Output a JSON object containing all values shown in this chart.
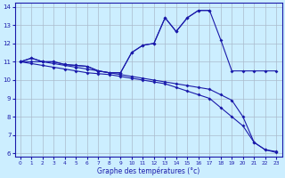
{
  "xlabel": "Graphe des températures (°c)",
  "line_color": "#1a1aaa",
  "bg_color": "#cceeff",
  "grid_color": "#aabbcc",
  "ylim": [
    6,
    14
  ],
  "yticks": [
    6,
    7,
    8,
    9,
    10,
    11,
    12,
    13,
    14
  ],
  "xticks": [
    0,
    1,
    2,
    3,
    4,
    5,
    6,
    7,
    8,
    9,
    10,
    11,
    12,
    13,
    14,
    15,
    16,
    17,
    18,
    19,
    20,
    21,
    22,
    23
  ],
  "curve1_x": [
    0,
    1,
    2,
    3,
    4,
    5,
    6,
    7,
    8,
    9,
    10,
    11,
    12,
    13,
    14,
    15,
    16,
    17
  ],
  "curve1_y": [
    11.0,
    11.2,
    11.0,
    11.0,
    10.85,
    10.8,
    10.75,
    10.5,
    10.4,
    10.4,
    11.5,
    11.9,
    12.0,
    13.4,
    12.65,
    13.4,
    13.8,
    13.8
  ],
  "curve2_x": [
    0,
    1,
    2,
    3,
    4,
    5,
    6,
    7,
    8,
    9,
    10,
    11,
    12,
    13,
    14,
    15,
    16,
    17,
    18,
    19,
    20,
    21,
    22,
    23
  ],
  "curve2_y": [
    11.0,
    11.2,
    11.0,
    11.0,
    10.85,
    10.8,
    10.75,
    10.5,
    10.4,
    10.4,
    11.5,
    11.9,
    12.0,
    13.4,
    12.65,
    13.4,
    13.8,
    13.8,
    12.2,
    10.5,
    10.5,
    10.5,
    10.5,
    10.5
  ],
  "curve3_x": [
    0,
    1,
    2,
    3,
    4,
    5,
    6,
    7,
    8,
    9,
    10,
    11,
    12,
    13,
    14,
    15,
    16,
    17,
    18,
    19,
    20,
    21,
    22,
    23
  ],
  "curve3_y": [
    11.0,
    11.0,
    11.0,
    10.9,
    10.8,
    10.7,
    10.6,
    10.5,
    10.4,
    10.3,
    10.2,
    10.1,
    10.0,
    9.9,
    9.8,
    9.7,
    9.6,
    9.5,
    9.2,
    8.9,
    8.0,
    6.6,
    6.2,
    6.1
  ],
  "curve4_x": [
    0,
    1,
    2,
    3,
    4,
    5,
    6,
    7,
    8,
    9,
    10,
    11,
    12,
    13,
    14,
    15,
    16,
    17,
    18,
    19,
    20,
    21,
    22,
    23
  ],
  "curve4_y": [
    11.0,
    10.9,
    10.8,
    10.7,
    10.6,
    10.5,
    10.4,
    10.35,
    10.3,
    10.2,
    10.1,
    10.0,
    9.9,
    9.8,
    9.6,
    9.4,
    9.2,
    9.0,
    8.5,
    8.0,
    7.5,
    6.6,
    6.2,
    6.05
  ]
}
